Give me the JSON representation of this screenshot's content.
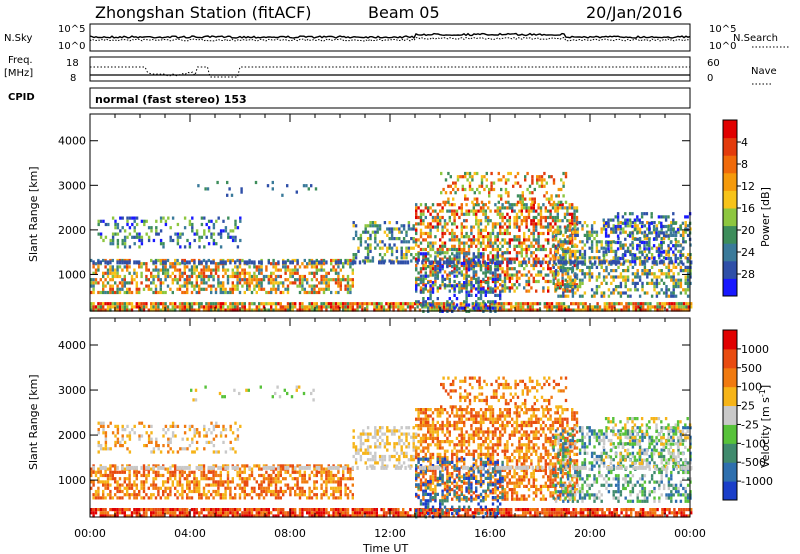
{
  "header": {
    "station": "Zhongshan Station (fitACF)",
    "beam": "Beam 05",
    "date": "20/Jan/2016"
  },
  "top_panels": {
    "nsky_label": "N.Sky",
    "nsearch_label": "N.Search",
    "noise_ticks_left": [
      "10^5",
      "10^0"
    ],
    "noise_ticks_right": [
      "10^5",
      "10^0"
    ],
    "freq_label_1": "Freq.",
    "freq_label_2": "[MHz]",
    "freq_ticks": [
      "18",
      "8"
    ],
    "nave_ticks": [
      "60",
      "0"
    ],
    "nave_label": "Nave",
    "cpid_label": "CPID",
    "cpid_text": "normal (fast stereo) 153"
  },
  "chart_data": [
    {
      "type": "heatmap",
      "panel": "power",
      "ylabel": "Slant Range [km]",
      "xlabel": "",
      "ylim": [
        180,
        4600
      ],
      "xlim": [
        0,
        24
      ],
      "yticks": [
        "1000",
        "2000",
        "3000",
        "4000"
      ],
      "colorbar": {
        "label": "Power [dB]",
        "ticks": [
          "4",
          "8",
          "12",
          "16",
          "20",
          "24",
          "28"
        ],
        "colors": [
          "#1818ff",
          "#2f4fa8",
          "#3a7a9a",
          "#3d8d5b",
          "#8dc63f",
          "#f7c319",
          "#f59a0b",
          "#f06a0a",
          "#e33b0c",
          "#e00000"
        ]
      }
    },
    {
      "type": "heatmap",
      "panel": "velocity",
      "ylabel": "Slant Range [km]",
      "xlabel": "Time UT",
      "ylim": [
        180,
        4600
      ],
      "xlim": [
        0,
        24
      ],
      "yticks": [
        "1000",
        "2000",
        "3000",
        "4000"
      ],
      "xticks": [
        "00:00",
        "04:00",
        "08:00",
        "12:00",
        "16:00",
        "20:00",
        "00:00"
      ],
      "colorbar": {
        "label": "Velocity [m s",
        "label_sup": "-1",
        "label_end": "]",
        "ticks": [
          "1000",
          "500",
          "100",
          "25",
          "-25",
          "-100",
          "-500",
          "-1000"
        ],
        "colors": [
          "#1a3ec9",
          "#2e6fae",
          "#3f8a6d",
          "#57c23a",
          "#c9c9c9",
          "#f6b418",
          "#f07a10",
          "#e84b10",
          "#e00000"
        ]
      }
    }
  ]
}
